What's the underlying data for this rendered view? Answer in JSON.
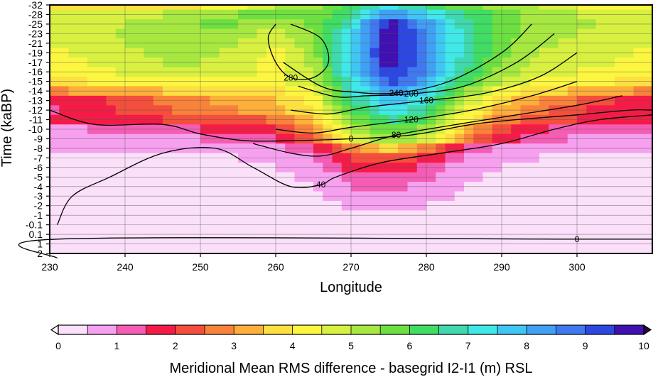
{
  "chart_data": {
    "type": "heatmap",
    "subtype": "filled contour (time vs longitude) with line contours",
    "xlabel": "Longitude",
    "ylabel": "Time (kaBP)",
    "xlim": [
      230,
      310
    ],
    "x_ticks": [
      230,
      240,
      250,
      260,
      270,
      280,
      290,
      300
    ],
    "x_tick_labels": [
      "230",
      "240",
      "250",
      "260",
      "270",
      "280",
      "290",
      "300"
    ],
    "y_tick_labels": [
      "-32",
      "-28",
      "-25",
      "-23",
      "-21",
      "-19",
      "-17",
      "-16",
      "-15",
      "-14",
      "-13",
      "-12",
      "-11",
      "-10",
      "-9",
      "-8",
      "-7",
      "-6",
      "-5",
      "-4",
      "-3",
      "-2",
      "-1",
      "-0.1",
      "0.1",
      "1",
      "2"
    ],
    "grid": true,
    "colorbar": {
      "label": "Meridional Mean RMS difference - basegrid I2-I1 (m) RSL",
      "ticks": [
        0,
        1,
        2,
        3,
        4,
        5,
        6,
        7,
        8,
        9,
        10
      ],
      "tick_labels": [
        "0",
        "1",
        "2",
        "3",
        "4",
        "5",
        "6",
        "7",
        "8",
        "9",
        "10"
      ],
      "min": 0,
      "max": 10,
      "step": 0.5,
      "colors": [
        "#fbe0fa",
        "#f7a0ef",
        "#f55cb4",
        "#f41c46",
        "#f54e3c",
        "#f9823a",
        "#fdaf3a",
        "#fde040",
        "#fcf640",
        "#d8f040",
        "#a6e840",
        "#6ce040",
        "#40dc64",
        "#40d8ae",
        "#40e8e8",
        "#40c6f4",
        "#40a0f4",
        "#4078f0",
        "#2c48e0",
        "#4010b0",
        "#300040"
      ]
    },
    "field": {
      "description": "RMS difference (m) at each time row (top to bottom) sampled at longitudes 230..310 step 5",
      "lon": [
        230,
        235,
        240,
        245,
        250,
        255,
        260,
        265,
        270,
        275,
        280,
        285,
        290,
        295,
        300,
        305,
        310
      ],
      "rows": [
        [
          3.9,
          3.8,
          3.9,
          3.9,
          4.0,
          4.3,
          5.0,
          5.3,
          6.2,
          7.2,
          6.4,
          5.7,
          5.2,
          5.0,
          4.5,
          4.2,
          4.0
        ],
        [
          4.5,
          4.5,
          4.7,
          5.0,
          5.3,
          5.5,
          5.6,
          5.6,
          6.5,
          8.5,
          7.5,
          6.5,
          5.7,
          5.2,
          5.0,
          4.8,
          4.6
        ],
        [
          4.7,
          4.8,
          5.0,
          5.3,
          5.5,
          5.5,
          5.3,
          5.6,
          7.0,
          9.8,
          8.2,
          6.8,
          5.8,
          5.3,
          5.1,
          4.9,
          4.7
        ],
        [
          4.6,
          4.8,
          5.1,
          5.3,
          5.4,
          5.2,
          4.8,
          5.5,
          7.3,
          9.9,
          8.5,
          6.8,
          5.8,
          5.2,
          5.0,
          4.8,
          4.6
        ],
        [
          4.5,
          4.7,
          5.0,
          5.2,
          5.2,
          5.0,
          4.5,
          5.4,
          7.4,
          9.9,
          8.6,
          6.8,
          5.7,
          5.1,
          4.9,
          4.7,
          4.5
        ],
        [
          4.4,
          4.6,
          4.9,
          5.1,
          5.1,
          4.9,
          4.3,
          5.3,
          7.5,
          9.9,
          8.6,
          6.8,
          5.6,
          5.0,
          4.8,
          4.6,
          4.4
        ],
        [
          4.3,
          4.5,
          4.8,
          5.0,
          5.0,
          4.8,
          4.2,
          5.2,
          7.5,
          9.8,
          8.6,
          6.7,
          5.5,
          4.9,
          4.7,
          4.5,
          4.3
        ],
        [
          4.1,
          4.3,
          4.6,
          4.8,
          4.8,
          4.7,
          4.2,
          5.1,
          7.4,
          9.6,
          8.5,
          6.5,
          5.3,
          4.7,
          4.5,
          4.3,
          4.1
        ],
        [
          3.8,
          4.0,
          4.2,
          4.4,
          4.4,
          4.4,
          4.3,
          4.9,
          7.2,
          9.2,
          8.2,
          6.2,
          5.0,
          4.4,
          4.2,
          4.0,
          3.8
        ],
        [
          2.9,
          3.1,
          3.3,
          3.5,
          3.6,
          3.7,
          3.8,
          4.5,
          6.8,
          8.5,
          7.6,
          5.6,
          4.3,
          3.7,
          3.4,
          3.1,
          2.9
        ],
        [
          1.6,
          1.8,
          2.2,
          2.6,
          2.9,
          3.2,
          3.5,
          4.2,
          6.4,
          7.8,
          7.0,
          5.0,
          3.7,
          3.0,
          2.5,
          2.0,
          1.8
        ],
        [
          1.4,
          1.7,
          2.1,
          2.4,
          2.7,
          3.0,
          3.3,
          4.0,
          6.0,
          7.3,
          6.5,
          4.6,
          3.3,
          2.6,
          2.1,
          1.8,
          1.6
        ],
        [
          1.6,
          1.8,
          1.9,
          2.0,
          2.1,
          2.2,
          2.6,
          3.6,
          5.6,
          6.6,
          6.0,
          4.2,
          2.8,
          2.2,
          2.0,
          1.9,
          1.7
        ],
        [
          0.9,
          1.0,
          1.2,
          1.4,
          1.5,
          1.6,
          1.9,
          3.1,
          5.0,
          6.0,
          5.3,
          3.4,
          2.2,
          1.6,
          1.3,
          1.1,
          1.0
        ],
        [
          0.7,
          0.7,
          0.8,
          0.9,
          1.0,
          1.2,
          1.5,
          2.6,
          4.5,
          5.5,
          4.8,
          2.8,
          1.7,
          1.2,
          0.9,
          0.8,
          0.7
        ],
        [
          0.5,
          0.5,
          0.5,
          0.6,
          0.6,
          0.7,
          0.9,
          1.4,
          2.8,
          3.6,
          2.8,
          1.4,
          0.8,
          0.6,
          0.5,
          0.5,
          0.5
        ],
        [
          0.4,
          0.4,
          0.4,
          0.4,
          0.4,
          0.5,
          0.6,
          1.0,
          2.0,
          2.4,
          1.9,
          1.0,
          0.6,
          0.5,
          0.4,
          0.4,
          0.4
        ],
        [
          0.3,
          0.3,
          0.3,
          0.4,
          0.4,
          0.4,
          0.5,
          0.8,
          1.6,
          1.9,
          1.4,
          0.7,
          0.5,
          0.4,
          0.3,
          0.3,
          0.3
        ],
        [
          0.3,
          0.3,
          0.3,
          0.3,
          0.3,
          0.3,
          0.4,
          0.6,
          1.2,
          1.5,
          1.1,
          0.6,
          0.4,
          0.3,
          0.3,
          0.3,
          0.3
        ],
        [
          0.2,
          0.2,
          0.2,
          0.2,
          0.2,
          0.3,
          0.3,
          0.5,
          1.0,
          1.1,
          0.9,
          0.5,
          0.3,
          0.2,
          0.2,
          0.2,
          0.2
        ],
        [
          0.2,
          0.2,
          0.2,
          0.2,
          0.2,
          0.2,
          0.3,
          0.4,
          0.8,
          1.0,
          0.7,
          0.4,
          0.3,
          0.2,
          0.2,
          0.2,
          0.2
        ],
        [
          0.1,
          0.1,
          0.1,
          0.2,
          0.2,
          0.2,
          0.2,
          0.3,
          0.6,
          0.7,
          0.5,
          0.3,
          0.2,
          0.2,
          0.1,
          0.1,
          0.1
        ],
        [
          0.1,
          0.1,
          0.1,
          0.1,
          0.1,
          0.1,
          0.2,
          0.2,
          0.3,
          0.4,
          0.3,
          0.2,
          0.1,
          0.1,
          0.1,
          0.1,
          0.1
        ],
        [
          0.1,
          0.1,
          0.1,
          0.1,
          0.1,
          0.1,
          0.1,
          0.2,
          0.2,
          0.2,
          0.2,
          0.1,
          0.1,
          0.1,
          0.1,
          0.1,
          0.1
        ],
        [
          0.1,
          0.1,
          0.1,
          0.1,
          0.1,
          0.1,
          0.1,
          0.1,
          0.1,
          0.1,
          0.1,
          0.1,
          0.1,
          0.1,
          0.1,
          0.1,
          0.1
        ],
        [
          0.1,
          0.1,
          0.1,
          0.1,
          0.1,
          0.1,
          0.1,
          0.1,
          0.1,
          0.1,
          0.1,
          0.1,
          0.1,
          0.1,
          0.1,
          0.1,
          0.1
        ],
        [
          0.1,
          0.1,
          0.1,
          0.1,
          0.1,
          0.1,
          0.1,
          0.1,
          0.1,
          0.1,
          0.1,
          0.1,
          0.1,
          0.1,
          0.1,
          0.1,
          0.1
        ]
      ]
    },
    "contour_lines": [
      {
        "label": "0",
        "points": [
          [
            231,
            26.5
          ],
          [
            231,
            24.5
          ],
          [
            300,
            24.5
          ],
          [
            310,
            24.5
          ]
        ]
      },
      {
        "label": "0",
        "points": [
          [
            230,
            11
          ],
          [
            236,
            12.5
          ],
          [
            245,
            12.5
          ],
          [
            250,
            13.5
          ],
          [
            256,
            14.2
          ],
          [
            262,
            14.2
          ],
          [
            270,
            14
          ],
          [
            278,
            13.6
          ],
          [
            286,
            12.5
          ],
          [
            292,
            12
          ],
          [
            300,
            11.5
          ],
          [
            307,
            11
          ],
          [
            310,
            11
          ]
        ]
      },
      {
        "label": "40",
        "points": [
          [
            231,
            23
          ],
          [
            233,
            20
          ],
          [
            238,
            18
          ],
          [
            245,
            15.5
          ],
          [
            252,
            15
          ],
          [
            257,
            17
          ],
          [
            262,
            19
          ],
          [
            266,
            18.8
          ],
          [
            268,
            18
          ],
          [
            274,
            16.5
          ],
          [
            282,
            15.5
          ],
          [
            290,
            14.5
          ],
          [
            297,
            13
          ],
          [
            303,
            12
          ],
          [
            310,
            11.5
          ]
        ]
      },
      {
        "label": "80",
        "points": [
          [
            257,
            14.5
          ],
          [
            262,
            15.5
          ],
          [
            266,
            15.8
          ],
          [
            270,
            15
          ],
          [
            276,
            13.6
          ],
          [
            284,
            12.5
          ],
          [
            292,
            11.5
          ],
          [
            300,
            10.5
          ],
          [
            306,
            9.5
          ]
        ]
      },
      {
        "label": "120",
        "points": [
          [
            260,
            13
          ],
          [
            265,
            13.4
          ],
          [
            270,
            12.8
          ],
          [
            278,
            12
          ],
          [
            286,
            11
          ],
          [
            294,
            9.5
          ],
          [
            300,
            8
          ]
        ]
      },
      {
        "label": "160",
        "points": [
          [
            262,
            11
          ],
          [
            267,
            11.4
          ],
          [
            272,
            10.7
          ],
          [
            280,
            10
          ],
          [
            288,
            9.2
          ],
          [
            295,
            7.5
          ],
          [
            300,
            5
          ]
        ]
      },
      {
        "label": "200",
        "points": [
          [
            263,
            8.5
          ],
          [
            268,
            9.6
          ],
          [
            272,
            9.5
          ],
          [
            278,
            9.3
          ],
          [
            285,
            8.5
          ],
          [
            292,
            6
          ],
          [
            297,
            3
          ]
        ]
      },
      {
        "label": "240",
        "points": [
          [
            261,
            6
          ],
          [
            266,
            8.5
          ],
          [
            270,
            9.1
          ],
          [
            276,
            9.2
          ],
          [
            283,
            8
          ],
          [
            290,
            5
          ],
          [
            294,
            2
          ]
        ]
      },
      {
        "label": "280",
        "points": [
          [
            262,
            2
          ],
          [
            266,
            3.5
          ],
          [
            267,
            6
          ],
          [
            265,
            7.6
          ],
          [
            262,
            7.6
          ],
          [
            260,
            6
          ],
          [
            259,
            3.5
          ],
          [
            260,
            2
          ]
        ]
      }
    ]
  }
}
